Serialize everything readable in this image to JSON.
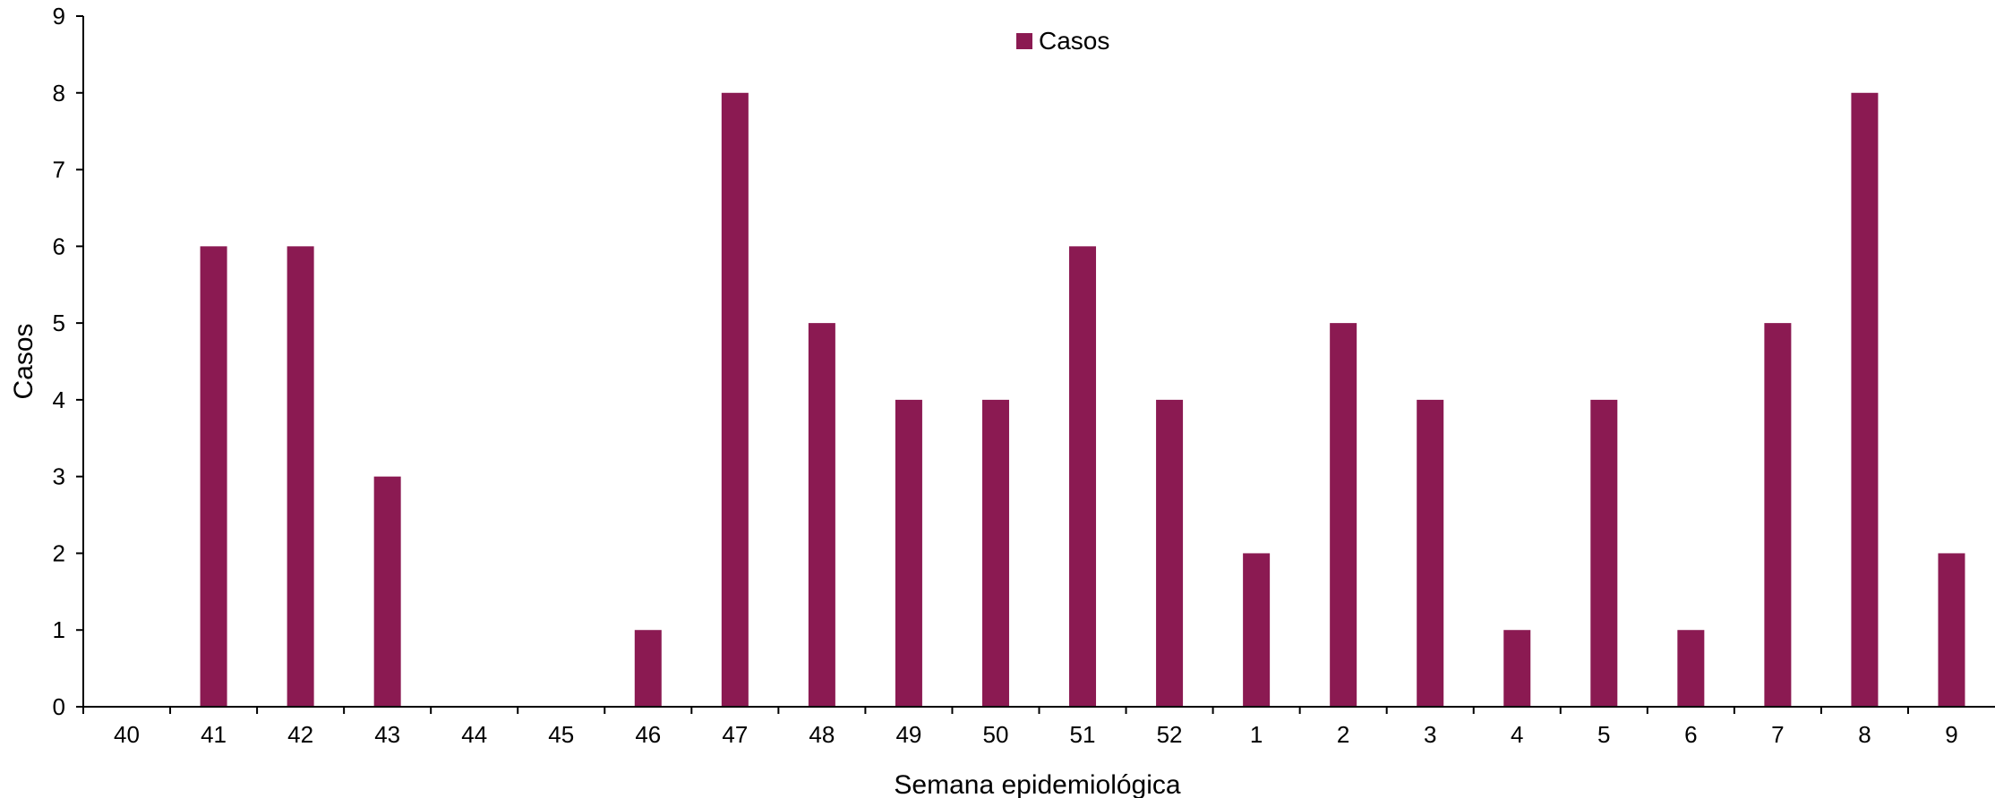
{
  "chart_data": {
    "type": "bar",
    "categories": [
      "40",
      "41",
      "42",
      "43",
      "44",
      "45",
      "46",
      "47",
      "48",
      "49",
      "50",
      "51",
      "52",
      "1",
      "2",
      "3",
      "4",
      "5",
      "6",
      "7",
      "8",
      "9"
    ],
    "series": [
      {
        "name": "Casos",
        "values": [
          0,
          6,
          6,
          3,
          0,
          0,
          1,
          8,
          5,
          4,
          4,
          6,
          4,
          2,
          5,
          4,
          1,
          4,
          1,
          5,
          8,
          2
        ],
        "color": "#8B1A52"
      }
    ],
    "xlabel": "Semana epidemiológica",
    "ylabel": "Casos",
    "ylim": [
      0,
      9
    ],
    "yticks": [
      0,
      1,
      2,
      3,
      4,
      5,
      6,
      7,
      8,
      9
    ],
    "grid": false,
    "legend": {
      "placement": "top-center",
      "entries": [
        "Casos"
      ]
    }
  }
}
